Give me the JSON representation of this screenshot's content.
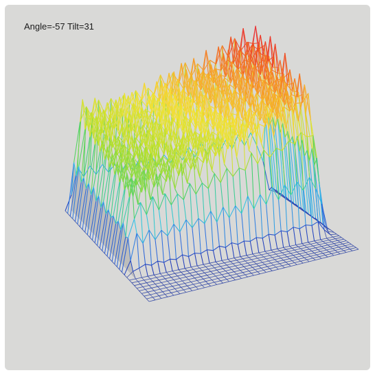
{
  "view": {
    "label": "Angle=-57 Tilt=31"
  },
  "chart_data": {
    "type": "surface",
    "render": "wireframe",
    "view_angle": -57,
    "view_tilt": 31,
    "axes_visible": false,
    "grid": false,
    "grid_size": 34,
    "colormap": [
      "#1c2fb0",
      "#2f6fe0",
      "#2fc6e8",
      "#3fd06a",
      "#b6e02c",
      "#f4e233",
      "#f79a26",
      "#ec3526",
      "#d83d9a"
    ],
    "base_color": "#3b4fa8",
    "peak_value": 1.0,
    "description_of_shape": "plateau"
  }
}
